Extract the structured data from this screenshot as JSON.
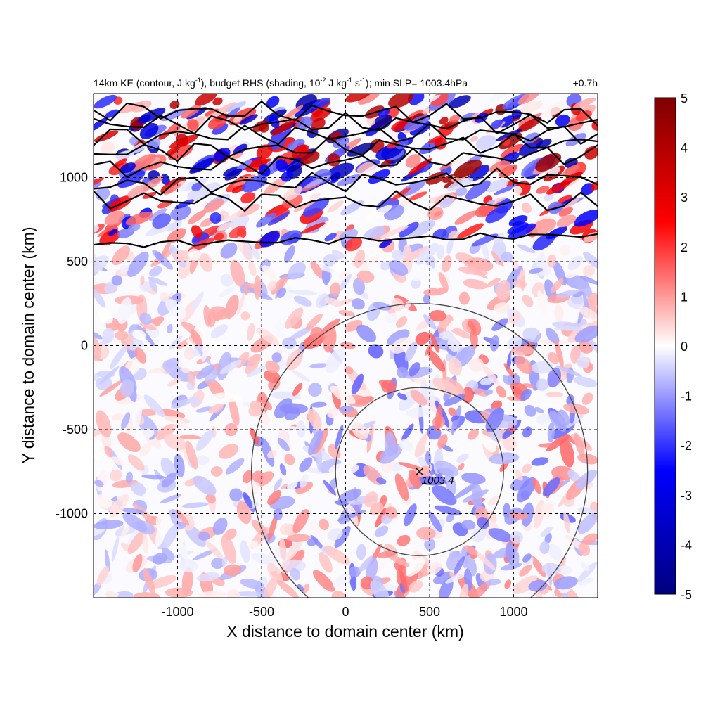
{
  "chart_data": {
    "type": "heatmap",
    "title_parts": {
      "a": "14km KE (contour, J kg",
      "a_sup": "-1",
      "b": "), budget RHS (shading, 10",
      "b_sup": "-2",
      "c": " J kg",
      "c_sup": "-1",
      "d": " s",
      "d_sup": "-1",
      "e": "); min SLP= 1003.4hPa"
    },
    "time_label": "+0.7h",
    "xlabel": "X distance to domain center (km)",
    "ylabel": "Y distance to domain center (km)",
    "xlim": [
      -1500,
      1500
    ],
    "ylim": [
      -1500,
      1500
    ],
    "x_ticks": [
      -1000,
      -500,
      0,
      500,
      1000
    ],
    "y_ticks": [
      1000,
      500,
      0,
      -500,
      -1000
    ],
    "x_tick_labels": [
      "-1000",
      "-500",
      "0",
      "500",
      "1000"
    ],
    "y_tick_labels": [
      "1000",
      "500",
      "0",
      "-500",
      "-1000"
    ],
    "grid": true,
    "colorbar": {
      "range": [
        -5,
        5
      ],
      "ticks": [
        5,
        4,
        3,
        2,
        1,
        0,
        -1,
        -2,
        -3,
        -4,
        -5
      ],
      "tick_labels": [
        "5",
        "4",
        "3",
        "2",
        "1",
        "0",
        "-1",
        "-2",
        "-3",
        "-4",
        "-5"
      ],
      "colors": [
        "#00007f",
        "#0000ff",
        "#ffffff",
        "#ff0000",
        "#7f0000"
      ]
    },
    "storm_center": {
      "x": 440,
      "y": -750,
      "label": "1003.4"
    },
    "range_rings_km": [
      500,
      1000
    ],
    "ke_contours_y_at_x_edges": [
      [
        600,
        660
      ],
      [
        870,
        850
      ],
      [
        950,
        1000
      ],
      [
        1050,
        1140
      ],
      [
        1150,
        1210
      ],
      [
        1250,
        1260
      ],
      [
        1320,
        1320
      ],
      [
        1400,
        1370
      ]
    ]
  }
}
